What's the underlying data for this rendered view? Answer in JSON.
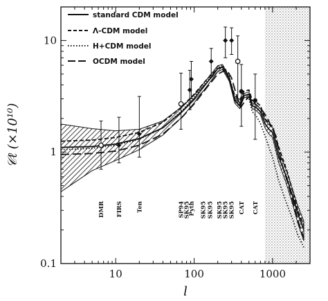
{
  "chart_data": {
    "type": "line",
    "xscale": "log",
    "yscale": "log",
    "xlim": [
      2,
      3000
    ],
    "ylim": [
      0.1,
      20
    ],
    "xlabel": "l",
    "ylabel": "𝒞ℓ (×10¹⁰)",
    "x_ticks": [
      {
        "value": 10,
        "label": "10"
      },
      {
        "value": 100,
        "label": "100"
      },
      {
        "value": 1000,
        "label": "1000"
      }
    ],
    "y_ticks": [
      {
        "value": 0.1,
        "label": "0.1"
      },
      {
        "value": 1,
        "label": "1"
      },
      {
        "value": 10,
        "label": "10"
      }
    ],
    "legend_position": "top-left",
    "series": [
      {
        "name": "standard CDM model",
        "style": "solid",
        "x": [
          2,
          5,
          10,
          20,
          40,
          70,
          100,
          150,
          200,
          230,
          280,
          330,
          380,
          430,
          500,
          550,
          620,
          700,
          800,
          900,
          1000,
          1200,
          1500,
          1800,
          2100,
          2500
        ],
        "y": [
          1.1,
          1.12,
          1.18,
          1.32,
          1.65,
          2.3,
          3.0,
          4.3,
          5.6,
          5.8,
          4.5,
          2.9,
          2.6,
          3.2,
          3.3,
          2.6,
          2.5,
          2.3,
          1.8,
          1.6,
          1.5,
          0.9,
          0.6,
          0.4,
          0.28,
          0.2
        ]
      },
      {
        "name": "Λ-CDM model",
        "style": "dashed",
        "x": [
          2,
          5,
          10,
          20,
          40,
          70,
          100,
          150,
          200,
          230,
          280,
          330,
          380,
          430,
          500,
          550,
          620,
          700,
          800,
          900,
          1000,
          1200,
          1500,
          1800,
          2100,
          2500
        ],
        "y": [
          1.25,
          1.28,
          1.35,
          1.5,
          1.85,
          2.55,
          3.3,
          4.6,
          5.6,
          5.7,
          4.6,
          3.2,
          2.9,
          3.5,
          3.6,
          2.9,
          2.8,
          2.6,
          2.0,
          1.8,
          1.7,
          1.1,
          0.7,
          0.45,
          0.3,
          0.22
        ]
      },
      {
        "name": "H+CDM model",
        "style": "dotted",
        "x": [
          2,
          5,
          10,
          20,
          40,
          70,
          100,
          150,
          200,
          230,
          280,
          330,
          380,
          430,
          500,
          550,
          620,
          700,
          800,
          900,
          1000,
          1200,
          1500,
          1800,
          2100,
          2500
        ],
        "y": [
          1.05,
          1.08,
          1.15,
          1.3,
          1.65,
          2.35,
          3.1,
          4.4,
          5.7,
          6.0,
          4.8,
          3.0,
          2.6,
          3.1,
          3.0,
          2.3,
          2.1,
          1.8,
          1.4,
          1.1,
          0.9,
          0.55,
          0.35,
          0.25,
          0.18,
          0.14
        ]
      },
      {
        "name": "OCDM model",
        "style": "longdash",
        "x": [
          2,
          5,
          10,
          20,
          40,
          70,
          100,
          150,
          200,
          260,
          300,
          340,
          390,
          450,
          520,
          600,
          680,
          760,
          860,
          960,
          1100,
          1300,
          1600,
          1900,
          2200,
          2500
        ],
        "y": [
          0.95,
          0.97,
          1.02,
          1.15,
          1.45,
          2.05,
          2.7,
          3.9,
          5.0,
          5.5,
          4.6,
          3.4,
          2.5,
          2.9,
          3.2,
          2.7,
          2.5,
          2.3,
          2.0,
          1.7,
          1.4,
          0.8,
          0.5,
          0.32,
          0.22,
          0.17
        ]
      }
    ],
    "cosmic_variance_band": {
      "x": [
        2,
        5,
        10,
        20,
        40,
        70,
        100,
        150,
        200,
        230,
        280,
        330,
        380,
        430,
        500,
        550,
        620,
        700,
        800,
        900,
        1000,
        1200,
        1500,
        1800,
        2100,
        2500
      ],
      "upper": [
        1.78,
        1.62,
        1.55,
        1.6,
        1.9,
        2.55,
        3.25,
        4.6,
        5.95,
        6.1,
        4.7,
        3.05,
        2.75,
        3.35,
        3.45,
        2.75,
        2.65,
        2.45,
        1.95,
        1.75,
        1.65,
        1.0,
        0.68,
        0.46,
        0.33,
        0.24
      ],
      "lower": [
        0.44,
        0.68,
        0.84,
        1.05,
        1.42,
        2.06,
        2.76,
        4.0,
        5.25,
        5.5,
        4.3,
        2.75,
        2.45,
        3.05,
        3.15,
        2.45,
        2.35,
        2.15,
        1.65,
        1.45,
        1.35,
        0.8,
        0.52,
        0.34,
        0.23,
        0.16
      ]
    },
    "shaded_region": {
      "x_start": 800,
      "x_end": 3000
    },
    "data_points": [
      {
        "x": 6.5,
        "y": 1.15,
        "yerr_lo": 0.45,
        "yerr_hi": 0.75,
        "marker": "circle-open",
        "label": "DMR"
      },
      {
        "x": 11,
        "y": 1.15,
        "yerr_lo": 0.35,
        "yerr_hi": 0.9,
        "marker": "diamond",
        "label": "FIRS"
      },
      {
        "x": 20,
        "y": 1.45,
        "yerr_lo": 0.55,
        "yerr_hi": 1.7,
        "marker": "diamond",
        "label": "Ten"
      },
      {
        "x": 68,
        "y": 2.7,
        "yerr_lo": 1.1,
        "yerr_hi": 2.4,
        "marker": "circle-open",
        "label": "SP94"
      },
      {
        "x": 88,
        "y": 3.6,
        "yerr_lo": 1.2,
        "yerr_hi": 1.8,
        "marker": "diamond",
        "label": "SK95"
      },
      {
        "x": 92,
        "y": 4.5,
        "yerr_lo": 1.5,
        "yerr_hi": 2.0,
        "marker": "diamond",
        "label": "Pyth"
      },
      {
        "x": 165,
        "y": 6.5,
        "yerr_lo": 1.6,
        "yerr_hi": 2.0,
        "marker": "diamond",
        "label": "SK95"
      },
      {
        "x": 250,
        "y": 10.0,
        "yerr_lo": 3.0,
        "yerr_hi": 3.2,
        "marker": "diamond",
        "label": "SK95"
      },
      {
        "x": 300,
        "y": 10.0,
        "yerr_lo": 2.5,
        "yerr_hi": 3.0,
        "marker": "diamond",
        "label": "SK95"
      },
      {
        "x": 360,
        "y": 6.5,
        "yerr_lo": 3.5,
        "yerr_hi": 4.5,
        "marker": "circle-open",
        "label": "SK95"
      },
      {
        "x": 400,
        "y": 3.5,
        "yerr_lo": 1.8,
        "yerr_hi": 2.6,
        "marker": "circle",
        "label": "CAT"
      },
      {
        "x": 600,
        "y": 2.9,
        "yerr_lo": 1.6,
        "yerr_hi": 2.1,
        "marker": "circle",
        "label": "CAT"
      }
    ],
    "experiment_labels": [
      {
        "x": 6.5,
        "text": "DMR"
      },
      {
        "x": 11,
        "text": "FIRS"
      },
      {
        "x": 20,
        "text": "Ten"
      },
      {
        "x": 68,
        "text": "SP94"
      },
      {
        "x": 80,
        "text": "SK95"
      },
      {
        "x": 92,
        "text": "Pyth"
      },
      {
        "x": 130,
        "text": "SK95"
      },
      {
        "x": 160,
        "text": "SK95"
      },
      {
        "x": 210,
        "text": "SK95"
      },
      {
        "x": 250,
        "text": "SK95"
      },
      {
        "x": 300,
        "text": "SK95"
      },
      {
        "x": 400,
        "text": "CAT"
      },
      {
        "x": 600,
        "text": "CAT"
      }
    ]
  },
  "legend": {
    "items": [
      {
        "label": "standard CDM model",
        "style": "solid"
      },
      {
        "label": "Λ-CDM model",
        "style": "dashed"
      },
      {
        "label": "H+CDM model",
        "style": "dotted"
      },
      {
        "label": "OCDM model",
        "style": "longdash"
      }
    ]
  },
  "axes": {
    "xlabel": "l",
    "ylabel": "𝒞ℓ (×10¹⁰)"
  }
}
